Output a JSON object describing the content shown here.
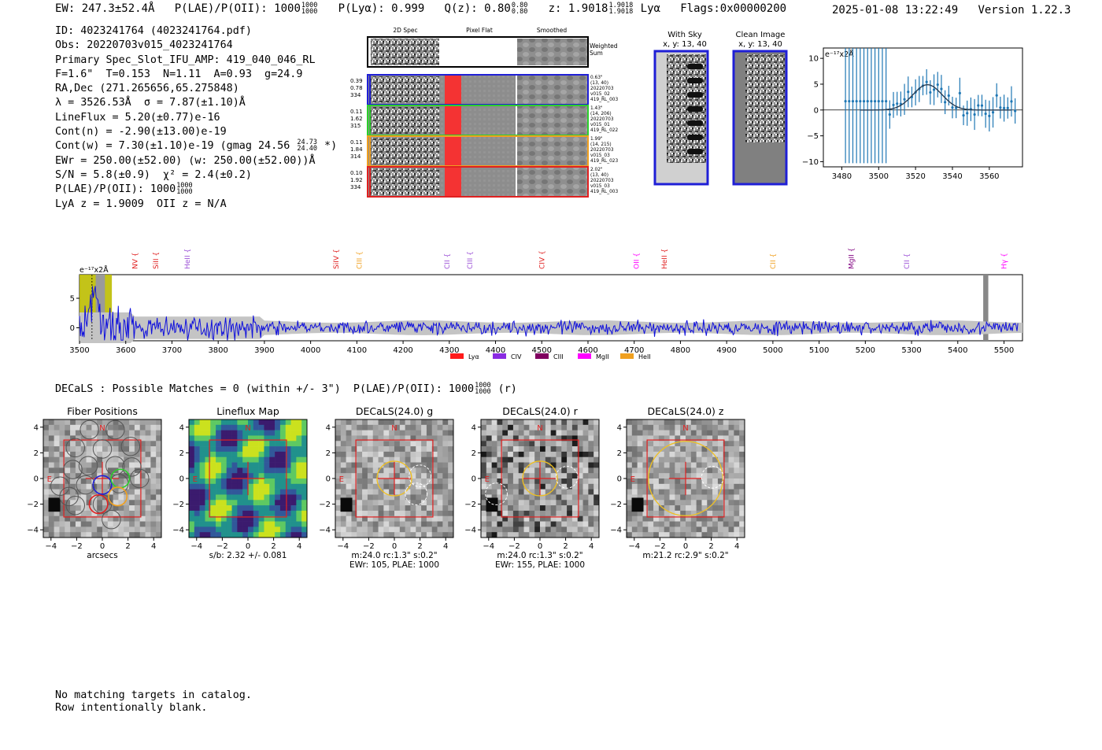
{
  "header": {
    "ew": "EW: 247.3±52.4Å",
    "plae_label": "P(LAE)/P(OII): 1000",
    "plae_hi": "1000",
    "plae_lo": "1000",
    "plya": "P(Lyα): 0.999",
    "qz_label": "Q(z): 0.80",
    "qz_hi": "0.80",
    "qz_lo": "0.80",
    "z_label": "z: 1.9018",
    "z_hi": "1.9018",
    "z_lo": "1.9018",
    "z_line": "Lyα",
    "flags": "Flags:0x00000200",
    "datetime": "2025-01-08 13:22:49",
    "version": "Version 1.22.3"
  },
  "info": {
    "id": "ID: 4023241764 (4023241764.pdf)",
    "obs": "Obs: 20220703v015_4023241764",
    "primary": "Primary Spec_Slot_IFU_AMP: 419_040_046_RL",
    "fit": "F=1.6\"  T=0.153  N=1.11  A=0.93  g=24.9",
    "radec": "RA,Dec (271.265656,65.275848)",
    "lambda": "λ = 3526.53Å  σ = 7.87(±1.10)Å",
    "lineflux": "LineFlux = 5.20(±0.77)e-16",
    "contn": "Cont(n) = -2.90(±13.00)e-19",
    "contw": "Cont(w) = 7.30(±1.10)e-19 (gmag 24.56",
    "gmag_hi": "24.73",
    "gmag_lo": "24.40",
    "contw_end": "*)",
    "ewr": "EWr = 250.00(±52.00) (w: 250.00(±52.00))Å",
    "sn": "S/N = 5.8(±0.9)  χ² = 2.4(±0.2)",
    "plae": "P(LAE)/P(OII): 1000",
    "plae_hi": "1000",
    "plae_lo": "1000",
    "lya": "LyA z = 1.9009  OII z = N/A"
  },
  "cutouts": {
    "col_2d": "2D Spec",
    "col_flat": "Pixel Flat",
    "col_smooth": "Smoothed",
    "weighted": "Weighted",
    "sum": "Sum",
    "rows": [
      {
        "v1": "0.39",
        "v2": "0.78",
        "v3": "334",
        "r1": "0.63\"",
        "r2": "(13, 40)",
        "r3": "20220703",
        "r4": "v015_02",
        "r5": "419_RL_003",
        "color": "#1f1fd6"
      },
      {
        "v1": "0.11",
        "v2": "1.62",
        "v3": "315",
        "r1": "1.43\"",
        "r2": "(14, 206)",
        "r3": "20220703",
        "r4": "v015_01",
        "r5": "419_RL_022",
        "color": "#2ccf2c"
      },
      {
        "v1": "0.11",
        "v2": "1.84",
        "v3": "314",
        "r1": "1.99\"",
        "r2": "(14, 215)",
        "r3": "20220703",
        "r4": "v015_03",
        "r5": "419_RL_023",
        "color": "#f0a020"
      },
      {
        "v1": "0.10",
        "v2": "1.92",
        "v3": "334",
        "r1": "2.02\"",
        "r2": "(13, 40)",
        "r3": "20220703",
        "r4": "v015_03",
        "r5": "419_RL_003",
        "color": "#e02020"
      }
    ]
  },
  "with_sky": {
    "title": "With Sky",
    "coords": "x, y: 13, 40"
  },
  "clean_image": {
    "title": "Clean Image",
    "coords": "x, y: 13, 40"
  },
  "zoom_spec": {
    "unit": "e⁻¹⁷x2Å",
    "xticks": [
      "3480",
      "3500",
      "3520",
      "3540",
      "3560"
    ],
    "yticks": [
      "10",
      "5",
      "0",
      "−5",
      "−10"
    ]
  },
  "full_spec": {
    "unit": "e⁻¹⁷x2Å",
    "xticks": [
      "3500",
      "3600",
      "3700",
      "3800",
      "3900",
      "4000",
      "4100",
      "4200",
      "4300",
      "4400",
      "4500",
      "4600",
      "4700",
      "4800",
      "4900",
      "5000",
      "5100",
      "5200",
      "5300",
      "5400",
      "5500"
    ],
    "yticks": [
      "5",
      "0"
    ],
    "lines": [
      {
        "name": "NV",
        "x": 3620,
        "color": "#e02020"
      },
      {
        "name": "SiII",
        "x": 3665,
        "color": "#e02020"
      },
      {
        "name": "HeII",
        "x": 3733,
        "color": "#9b4fd6"
      },
      {
        "name": "SiIV",
        "x": 4055,
        "color": "#e02020"
      },
      {
        "name": "CIII",
        "x": 4105,
        "color": "#f0a020"
      },
      {
        "name": "CII",
        "x": 4295,
        "color": "#9b4fd6"
      },
      {
        "name": "CIII",
        "x": 4345,
        "color": "#9b4fd6"
      },
      {
        "name": "CIV",
        "x": 4500,
        "color": "#e02020"
      },
      {
        "name": "OII",
        "x": 4705,
        "color": "#ff00ff"
      },
      {
        "name": "HeII",
        "x": 4765,
        "color": "#e02020"
      },
      {
        "name": "CII",
        "x": 5000,
        "color": "#f0a020"
      },
      {
        "name": "MgII",
        "x": 5170,
        "color": "#800080"
      },
      {
        "name": "CII",
        "x": 5290,
        "color": "#9b4fd6"
      },
      {
        "name": "Hγ",
        "x": 5500,
        "color": "#ff00ff"
      }
    ],
    "legend": [
      {
        "name": "Lyα",
        "color": "#ff1a1a"
      },
      {
        "name": "CIV",
        "color": "#8a2be2"
      },
      {
        "name": "CIII",
        "color": "#800060"
      },
      {
        "name": "MgII",
        "color": "#ff00ff"
      },
      {
        "name": "HeII",
        "color": "#f0a020"
      }
    ]
  },
  "decals": {
    "line": "DECaLS : Possible Matches = 0 (within +/- 3\")  P(LAE)/P(OII): 1000",
    "hi": "1000",
    "lo": "1000",
    "band": "(r)"
  },
  "panels": [
    {
      "title": "Fiber Positions",
      "caption1": "arcsecs",
      "caption2": ""
    },
    {
      "title": "Lineflux Map",
      "caption1": "s/b: 2.32 +/- 0.081",
      "caption2": ""
    },
    {
      "title": "DECaLS(24.0) g",
      "caption1": "m:24.0 rc:1.3\"  s:0.2\"",
      "caption2": "EWr: 105, PLAE: 1000"
    },
    {
      "title": "DECaLS(24.0) r",
      "caption1": "m:24.0 rc:1.3\"  s:0.2\"",
      "caption2": "EWr: 155, PLAE: 1000"
    },
    {
      "title": "DECaLS(24.0) z",
      "caption1": "m:21.2 rc:2.9\"  s:0.2\"",
      "caption2": ""
    }
  ],
  "panel_ticks": {
    "x": [
      "−4",
      "−2",
      "0",
      "2",
      "4"
    ],
    "y": [
      "4",
      "2",
      "0",
      "−2",
      "−4"
    ],
    "north": "N",
    "east": "E"
  },
  "footer": {
    "line1": "No matching targets in catalog.",
    "line2": "Row intentionally blank."
  }
}
